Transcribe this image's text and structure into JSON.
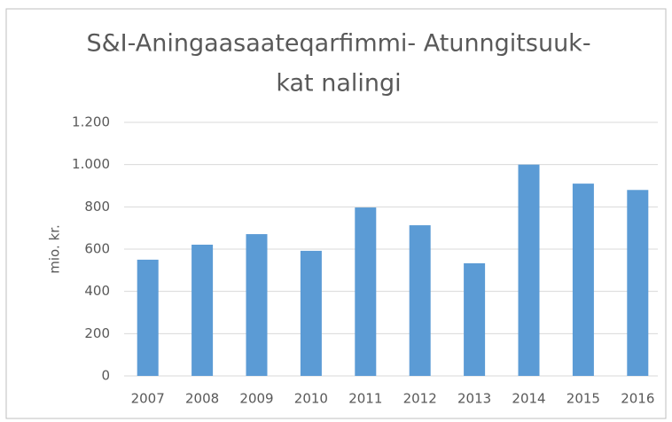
{
  "chart_data": {
    "type": "bar",
    "title": [
      "S&I-Aningaasaateqarfimmi- Atunngitsuuk-",
      "kat nalingi"
    ],
    "y_label": "mio. kr.",
    "categories": [
      "2007",
      "2008",
      "2009",
      "2010",
      "2011",
      "2012",
      "2013",
      "2014",
      "2015",
      "2016"
    ],
    "values": [
      550,
      621,
      671,
      592,
      797,
      713,
      533,
      1000,
      910,
      880
    ],
    "color": "#5b9bd5",
    "ylim": [
      0,
      1200
    ],
    "yticks": [
      0,
      200,
      400,
      600,
      800,
      {
        "value": 1000,
        "label": "1.000"
      },
      {
        "value": 1200,
        "label": "1.200"
      }
    ],
    "grid": true
  }
}
